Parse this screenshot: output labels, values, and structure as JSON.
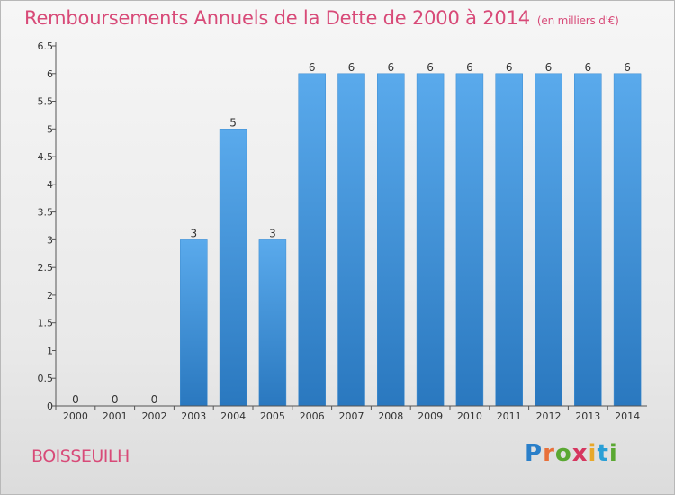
{
  "header": {
    "title": "Remboursements Annuels de la Dette de 2000 à 2014",
    "unit": "(en milliers d'€)"
  },
  "footer": {
    "commune": "BOISSEUILH",
    "logo": [
      "P",
      "r",
      "o",
      "x",
      "i",
      "t",
      "i"
    ],
    "logo_colors": [
      "#2a7fc9",
      "#e8703a",
      "#5aa832",
      "#d6365f",
      "#e8a82a",
      "#2a9fd6",
      "#5aa832"
    ]
  },
  "chart_data": {
    "type": "bar",
    "categories": [
      "2000",
      "2001",
      "2002",
      "2003",
      "2004",
      "2005",
      "2006",
      "2007",
      "2008",
      "2009",
      "2010",
      "2011",
      "2012",
      "2013",
      "2014"
    ],
    "values": [
      0,
      0,
      0,
      3,
      5,
      3,
      6,
      6,
      6,
      6,
      6,
      6,
      6,
      6,
      6
    ],
    "data_labels": [
      "0",
      "0",
      "0",
      "3",
      "5",
      "3",
      "6",
      "6",
      "6",
      "6",
      "6",
      "6",
      "6",
      "6",
      "6"
    ],
    "yticks": [
      0,
      0.5,
      1,
      1.5,
      2,
      2.5,
      3,
      3.5,
      4,
      4.5,
      5,
      5.5,
      6,
      6.5
    ],
    "ytick_labels": [
      "0",
      "0.5",
      "1",
      "1.5",
      "2",
      "2.5",
      "3",
      "3.5",
      "4",
      "4.5",
      "5",
      "5.5",
      "6",
      "6.5"
    ],
    "ylim": [
      0,
      6.5
    ],
    "grid": false,
    "bar_color": "#3d93d8",
    "title": "Remboursements Annuels de la Dette de 2000 à 2014",
    "xlabel": "",
    "ylabel": ""
  }
}
